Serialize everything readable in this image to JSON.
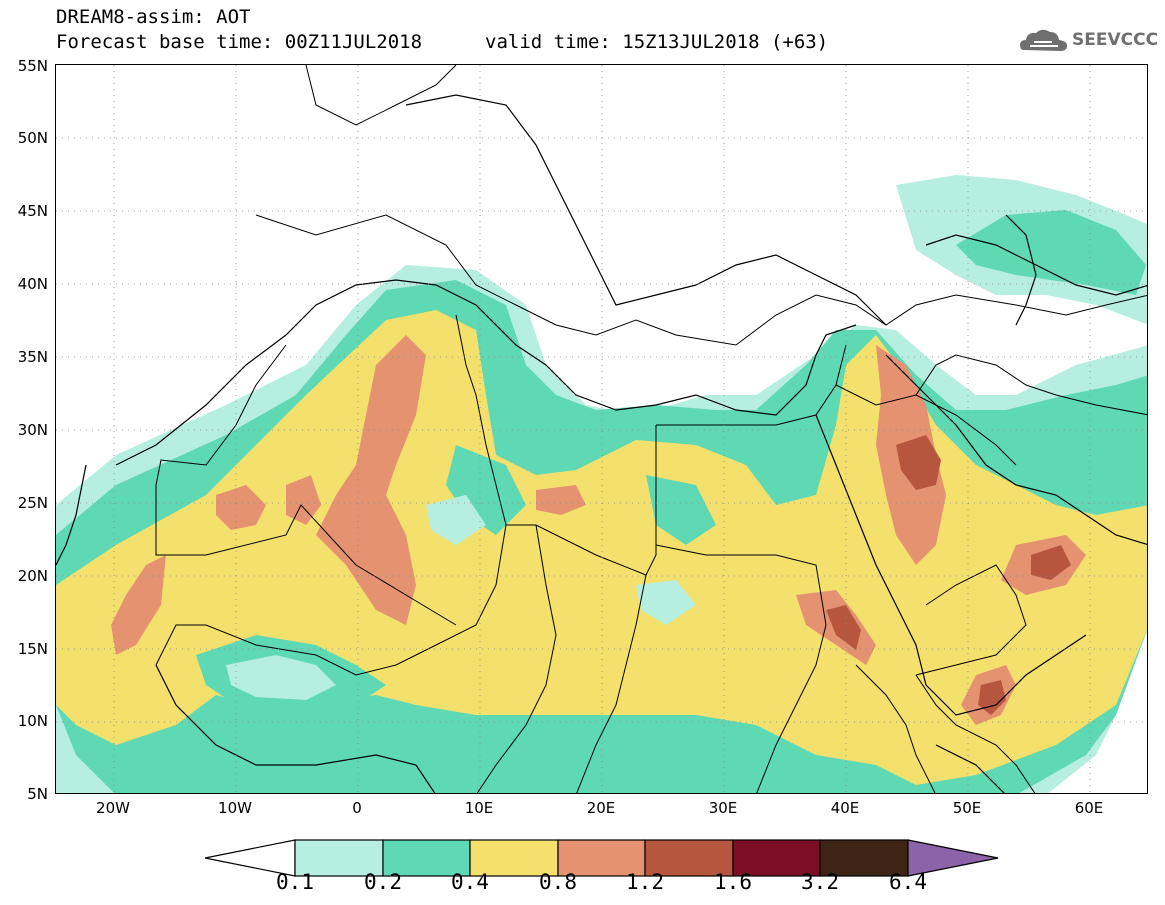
{
  "header": {
    "title": "DREAM8-assim: AOT",
    "base_time": "Forecast base time: 00Z11JUL2018",
    "valid_time": "valid time: 15Z13JUL2018 (+63)"
  },
  "logo": {
    "text": "SEEVCCC",
    "icon": "cloud-icon"
  },
  "map": {
    "lat_labels": [
      "55N",
      "50N",
      "45N",
      "40N",
      "35N",
      "30N",
      "25N",
      "20N",
      "15N",
      "10N",
      "5N"
    ],
    "lon_labels": [
      "20W",
      "10W",
      "0",
      "10E",
      "20E",
      "30E",
      "40E",
      "50E",
      "60E"
    ],
    "lon_range": [
      -25,
      65
    ],
    "lat_range": [
      5,
      55
    ]
  },
  "colorbar": {
    "levels": [
      "0.1",
      "0.2",
      "0.4",
      "0.8",
      "1.2",
      "1.6",
      "3.2",
      "6.4"
    ],
    "colors": [
      "#ffffff",
      "#b6eee0",
      "#5ed9b3",
      "#f4e06d",
      "#e59271",
      "#b6563f",
      "#7a0f26",
      "#3d2414",
      "#8c63a8"
    ]
  }
}
